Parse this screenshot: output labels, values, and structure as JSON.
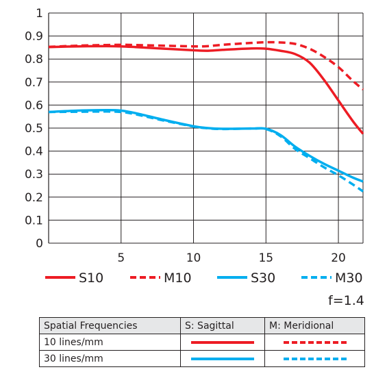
{
  "chart_data": {
    "type": "line",
    "xlim": [
      0,
      21.7
    ],
    "ylim": [
      0,
      1
    ],
    "xticks": [
      5,
      10,
      15,
      20
    ],
    "yticks": [
      0,
      0.1,
      0.2,
      0.3,
      0.4,
      0.5,
      0.6,
      0.7,
      0.8,
      0.9,
      1
    ],
    "ytick_labels": [
      "0",
      "0.1",
      "0.2",
      "0.3",
      "0.4",
      "0.5",
      "0.6",
      "0.7",
      "0.8",
      "0.9",
      "1"
    ],
    "xtick_labels": [
      "5",
      "10",
      "15",
      "20"
    ],
    "grid": true,
    "legend_position": "bottom",
    "x": [
      0,
      2,
      4,
      5,
      6,
      8,
      10,
      11,
      12,
      14,
      15,
      16,
      17,
      18,
      19,
      20,
      21,
      21.7
    ],
    "series": [
      {
        "name": "S10",
        "color": "#ed1c24",
        "style": "solid",
        "values": [
          0.852,
          0.855,
          0.856,
          0.855,
          0.852,
          0.845,
          0.838,
          0.836,
          0.84,
          0.846,
          0.845,
          0.836,
          0.822,
          0.785,
          0.71,
          0.62,
          0.53,
          0.475
        ]
      },
      {
        "name": "M10",
        "color": "#ed1c24",
        "style": "dashed",
        "values": [
          0.853,
          0.858,
          0.861,
          0.862,
          0.861,
          0.858,
          0.855,
          0.856,
          0.862,
          0.87,
          0.873,
          0.872,
          0.866,
          0.845,
          0.81,
          0.765,
          0.705,
          0.668
        ]
      },
      {
        "name": "S30",
        "color": "#00aeef",
        "style": "solid",
        "values": [
          0.57,
          0.576,
          0.578,
          0.576,
          0.565,
          0.535,
          0.508,
          0.5,
          0.497,
          0.498,
          0.497,
          0.47,
          0.42,
          0.38,
          0.345,
          0.315,
          0.285,
          0.268
        ]
      },
      {
        "name": "M30",
        "color": "#00aeef",
        "style": "dashed",
        "values": [
          0.57,
          0.571,
          0.572,
          0.57,
          0.56,
          0.532,
          0.507,
          0.499,
          0.496,
          0.498,
          0.496,
          0.465,
          0.41,
          0.37,
          0.33,
          0.295,
          0.255,
          0.225
        ]
      }
    ]
  },
  "aperture_label": "f=1.4",
  "key_table": {
    "header": [
      "Spatial Frequencies",
      "S: Sagittal",
      "M: Meridional"
    ],
    "rows": [
      {
        "label": "10 lines/mm",
        "color": "#ed1c24"
      },
      {
        "label": "30 lines/mm",
        "color": "#00aeef"
      }
    ]
  }
}
